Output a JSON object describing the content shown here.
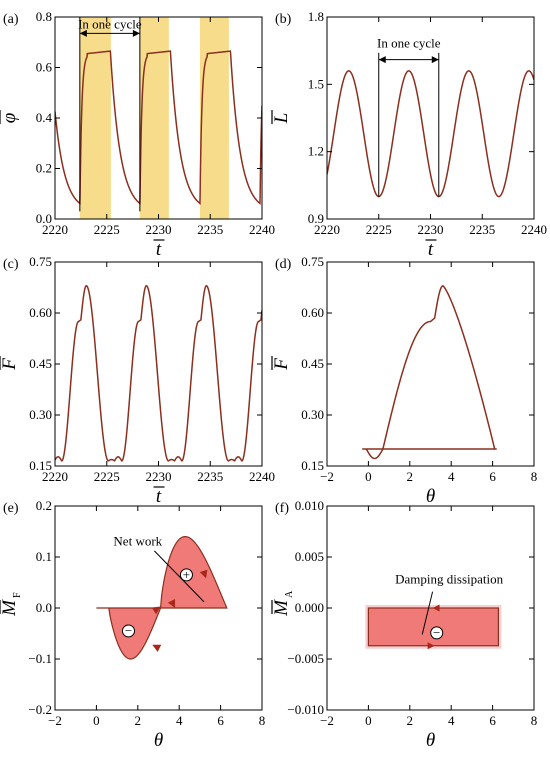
{
  "chart_data": [
    {
      "panel_label": "(a)",
      "type": "line",
      "xlabel": "t",
      "ylabel": "φ",
      "xlim": [
        2220,
        2240
      ],
      "ylim": [
        0.0,
        0.8
      ],
      "xticks": [
        2220,
        2225,
        2230,
        2235,
        2240
      ],
      "yticks": [
        0.0,
        0.2,
        0.4,
        0.6,
        0.8
      ],
      "ytick_labels": [
        "0.0",
        "0.2",
        "0.4",
        "0.6",
        "0.8"
      ],
      "annotation": "In one cycle",
      "cycle_span": [
        2222.4,
        2228.2
      ],
      "highlight_bands": [
        [
          2222.4,
          2225.4
        ],
        [
          2228.2,
          2231.0
        ],
        [
          2234.0,
          2236.8
        ]
      ],
      "series": [
        {
          "color": "#8b2f1f",
          "peak": 0.665,
          "min": 0.03,
          "period": 5.8
        }
      ]
    },
    {
      "panel_label": "(b)",
      "type": "line",
      "xlabel": "t",
      "ylabel": "L",
      "xlim": [
        2220,
        2240
      ],
      "ylim": [
        0.9,
        1.8
      ],
      "xticks": [
        2220,
        2225,
        2230,
        2235,
        2240
      ],
      "yticks": [
        0.9,
        1.2,
        1.5,
        1.8
      ],
      "ytick_labels": [
        "0.9",
        "1.2",
        "1.5",
        "1.8"
      ],
      "annotation": "In one cycle",
      "cycle_span": [
        2225.0,
        2230.8
      ],
      "series": [
        {
          "color": "#8b2f1f",
          "max": 1.56,
          "min": 1.0,
          "period": 5.8
        }
      ]
    },
    {
      "panel_label": "(c)",
      "type": "line",
      "xlabel": "t",
      "ylabel": "F",
      "xlim": [
        2220,
        2240
      ],
      "ylim": [
        0.15,
        0.75
      ],
      "xticks": [
        2220,
        2225,
        2230,
        2235,
        2240
      ],
      "yticks": [
        0.15,
        0.3,
        0.45,
        0.6,
        0.75
      ],
      "ytick_labels": [
        "0.15",
        "0.30",
        "0.45",
        "0.60",
        "0.75"
      ],
      "series": [
        {
          "color": "#8b2f1f",
          "max": 0.68,
          "min": 0.165,
          "period": 5.8
        }
      ]
    },
    {
      "panel_label": "(d)",
      "type": "line",
      "xlabel": "θ",
      "ylabel": "F",
      "xlim": [
        -2,
        8
      ],
      "ylim": [
        0.15,
        0.75
      ],
      "xticks": [
        -2,
        0,
        2,
        4,
        6,
        8
      ],
      "yticks": [
        0.15,
        0.3,
        0.45,
        0.6,
        0.75
      ],
      "ytick_labels": [
        "0.15",
        "0.30",
        "0.45",
        "0.60",
        "0.75"
      ],
      "series": [
        {
          "color": "#8b2f1f",
          "theta_range": [
            0,
            6.28
          ],
          "max": 0.68,
          "base": 0.2
        }
      ]
    },
    {
      "panel_label": "(e)",
      "type": "area",
      "xlabel": "θ",
      "ylabel": "M",
      "ylabel_subscript": "F",
      "xlim": [
        -2,
        8
      ],
      "ylim": [
        -0.2,
        0.2
      ],
      "xticks": [
        -2,
        0,
        2,
        4,
        6,
        8
      ],
      "yticks": [
        -0.2,
        -0.1,
        0.0,
        0.1,
        0.2
      ],
      "ytick_labels": [
        "−0.2",
        "−0.1",
        "0.0",
        "0.1",
        "0.2"
      ],
      "annotation": "Net work",
      "signs": [
        "+",
        "−"
      ],
      "series": [
        {
          "color": "#8b2f1f",
          "fill": "#f07a78",
          "upper_peak": 0.14,
          "lower_min": -0.1
        }
      ]
    },
    {
      "panel_label": "(f)",
      "type": "area",
      "xlabel": "θ",
      "ylabel": "M",
      "ylabel_subscript": "A",
      "xlim": [
        -2,
        8
      ],
      "ylim": [
        -0.01,
        0.01
      ],
      "xticks": [
        -2,
        0,
        2,
        4,
        6,
        8
      ],
      "yticks": [
        -0.01,
        -0.005,
        0.0,
        0.005,
        0.01
      ],
      "ytick_labels": [
        "−0.010",
        "−0.005",
        "0.000",
        "0.005",
        "0.010"
      ],
      "annotation": "Damping dissipation",
      "signs": [
        "−"
      ],
      "series": [
        {
          "color": "#8b2f1f",
          "fill": "#f07a78",
          "y_top": 0.0,
          "y_bottom": -0.0037,
          "theta_range": [
            0,
            6.28
          ]
        }
      ]
    }
  ]
}
